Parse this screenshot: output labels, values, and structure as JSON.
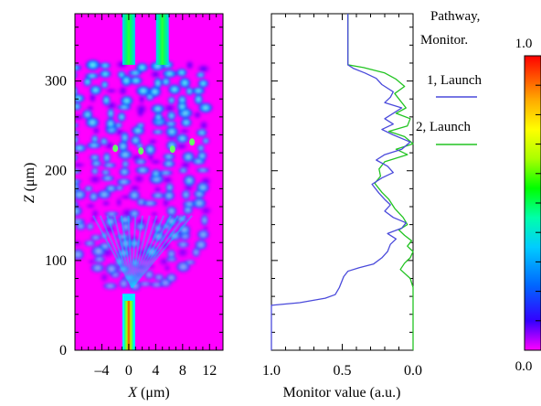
{
  "chart_data": [
    {
      "type": "heatmap",
      "description_labels": {
        "xlabel_symbol": "X",
        "xlabel_unit": " (μm)",
        "ylabel_symbol": "Z",
        "ylabel_unit": " (μm)"
      },
      "xlim": [
        -8,
        14
      ],
      "ylim": [
        0,
        375
      ],
      "xticks": [
        -4,
        0,
        4,
        8,
        12
      ],
      "yticks": [
        0,
        100,
        200,
        300
      ],
      "xtick_labels": [
        "–4",
        "0",
        "4",
        "8",
        "12"
      ],
      "ytick_labels": [
        "0",
        "100",
        "200",
        "300"
      ],
      "background_color": "#ff00ff",
      "input_waveguide": {
        "x_center": 0,
        "z_end": 55
      },
      "output_waveguides": [
        {
          "x_center": 0,
          "z_start": 318
        },
        {
          "x_center": 5,
          "z_start": 318
        }
      ],
      "mmi_region": {
        "x_range": [
          -8,
          14
        ],
        "z_range": [
          55,
          320
        ]
      }
    },
    {
      "type": "line",
      "xlabel": "Monitor value (a.u.)",
      "xlim": [
        1.0,
        0.0
      ],
      "ylim": [
        0,
        375
      ],
      "xticks": [
        1.0,
        0.5,
        0.0
      ],
      "xtick_labels": [
        "1.0",
        "0.5",
        "0.0"
      ],
      "legend_title": [
        "Pathway,",
        "Monitor."
      ],
      "series": [
        {
          "name": "1, Launch",
          "color": "#4a4adb",
          "points": [
            [
              1.0,
              0
            ],
            [
              1.0,
              50
            ],
            [
              0.8,
              53
            ],
            [
              0.62,
              58
            ],
            [
              0.55,
              62
            ],
            [
              0.52,
              70
            ],
            [
              0.49,
              82
            ],
            [
              0.46,
              88
            ],
            [
              0.38,
              92
            ],
            [
              0.28,
              96
            ],
            [
              0.22,
              103
            ],
            [
              0.18,
              110
            ],
            [
              0.16,
              118
            ],
            [
              0.12,
              124
            ],
            [
              0.18,
              130
            ],
            [
              0.08,
              136
            ],
            [
              0.05,
              142
            ],
            [
              0.14,
              148
            ],
            [
              0.2,
              155
            ],
            [
              0.16,
              162
            ],
            [
              0.2,
              168
            ],
            [
              0.24,
              175
            ],
            [
              0.29,
              185
            ],
            [
              0.22,
              192
            ],
            [
              0.14,
              198
            ],
            [
              0.18,
              205
            ],
            [
              0.26,
              212
            ],
            [
              0.2,
              218
            ],
            [
              0.08,
              224
            ],
            [
              0.02,
              232
            ],
            [
              0.14,
              240
            ],
            [
              0.22,
              246
            ],
            [
              0.14,
              252
            ],
            [
              0.2,
              258
            ],
            [
              0.14,
              264
            ],
            [
              0.08,
              270
            ],
            [
              0.2,
              276
            ],
            [
              0.16,
              282
            ],
            [
              0.14,
              288
            ],
            [
              0.22,
              296
            ],
            [
              0.26,
              303
            ],
            [
              0.34,
              309
            ],
            [
              0.42,
              314
            ],
            [
              0.46,
              318
            ],
            [
              0.46,
              375
            ]
          ]
        },
        {
          "name": "2, Launch",
          "color": "#22c422",
          "points": [
            [
              0.0,
              0
            ],
            [
              0.0,
              50
            ],
            [
              0.0,
              70
            ],
            [
              0.02,
              80
            ],
            [
              0.09,
              90
            ],
            [
              0.06,
              97
            ],
            [
              0.02,
              103
            ],
            [
              0.0,
              110
            ],
            [
              0.04,
              116
            ],
            [
              0.01,
              122
            ],
            [
              0.06,
              128
            ],
            [
              0.1,
              134
            ],
            [
              0.04,
              140
            ],
            [
              0.07,
              148
            ],
            [
              0.13,
              158
            ],
            [
              0.17,
              168
            ],
            [
              0.22,
              176
            ],
            [
              0.27,
              186
            ],
            [
              0.23,
              194
            ],
            [
              0.24,
              202
            ],
            [
              0.2,
              210
            ],
            [
              0.04,
              218
            ],
            [
              0.12,
              224
            ],
            [
              0.0,
              230
            ],
            [
              0.06,
              238
            ],
            [
              0.17,
              244
            ],
            [
              0.04,
              250
            ],
            [
              0.02,
              258
            ],
            [
              0.12,
              264
            ],
            [
              0.05,
              270
            ],
            [
              0.09,
              278
            ],
            [
              0.13,
              286
            ],
            [
              0.06,
              294
            ],
            [
              0.12,
              302
            ],
            [
              0.2,
              309
            ],
            [
              0.35,
              315
            ],
            [
              0.46,
              318
            ],
            [
              0.46,
              375
            ]
          ]
        }
      ]
    },
    {
      "type": "colorbar",
      "range_labels": [
        "1.0",
        "0.0"
      ],
      "colors": [
        "#ff00ff",
        "#3300ff",
        "#0066ff",
        "#00ccff",
        "#00ffaa",
        "#00ff00",
        "#aaff00",
        "#ffff00",
        "#ffaa00",
        "#ff4400",
        "#ff0000"
      ]
    }
  ]
}
